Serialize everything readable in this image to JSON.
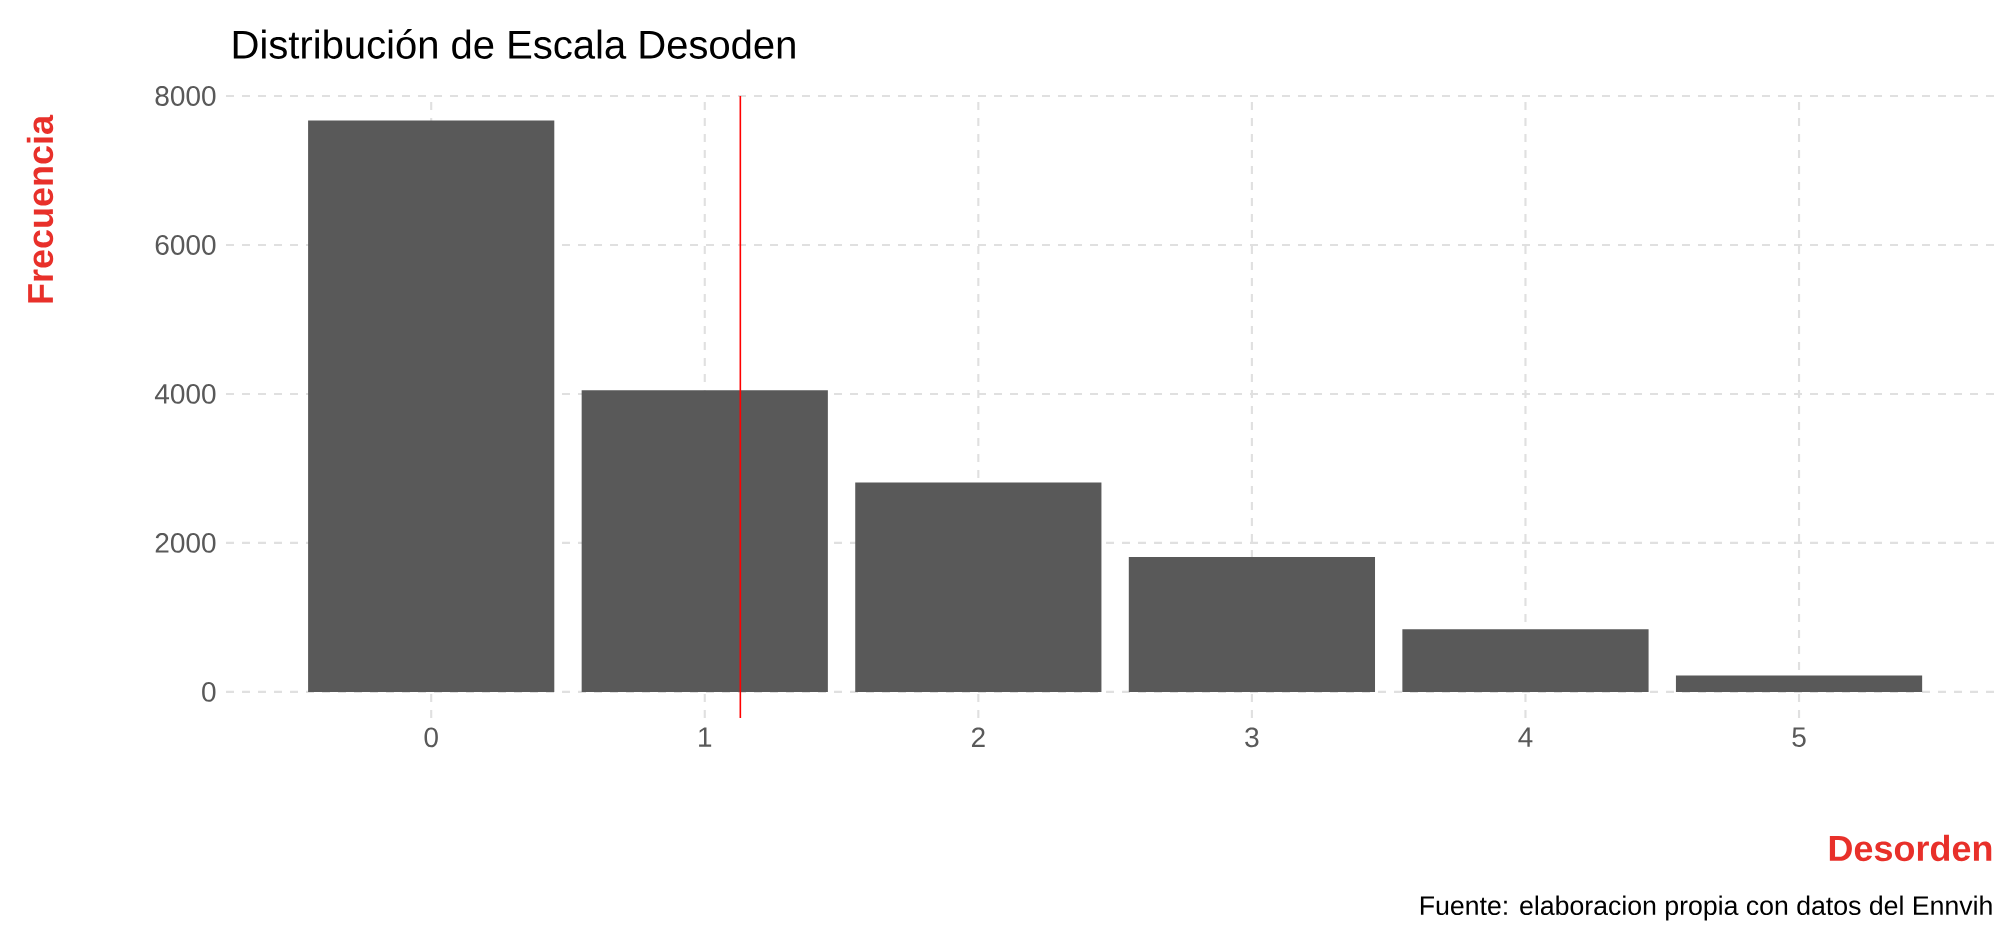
{
  "chart_data": {
    "type": "bar",
    "title": "Distribución de Escala Desoden",
    "xlabel": "Desorden",
    "ylabel": "Frecuencia",
    "x": [
      0,
      1,
      2,
      3,
      4,
      5
    ],
    "values": [
      7670,
      4050,
      2810,
      1810,
      840,
      220
    ],
    "color": "#595959",
    "xlim": [
      -0.75,
      5.72
    ],
    "xticks": [
      0,
      1,
      2,
      3,
      4,
      5
    ],
    "ylim": [
      -350,
      8000
    ],
    "yticks": [
      0,
      2000,
      4000,
      6000,
      8000
    ],
    "grid": true,
    "ref_lines": [
      {
        "axis": "x",
        "value": 1.13,
        "color": "#ff0000"
      }
    ],
    "annotations": [
      "Fuente: elaboracion propia con datos del Ennvih"
    ]
  }
}
